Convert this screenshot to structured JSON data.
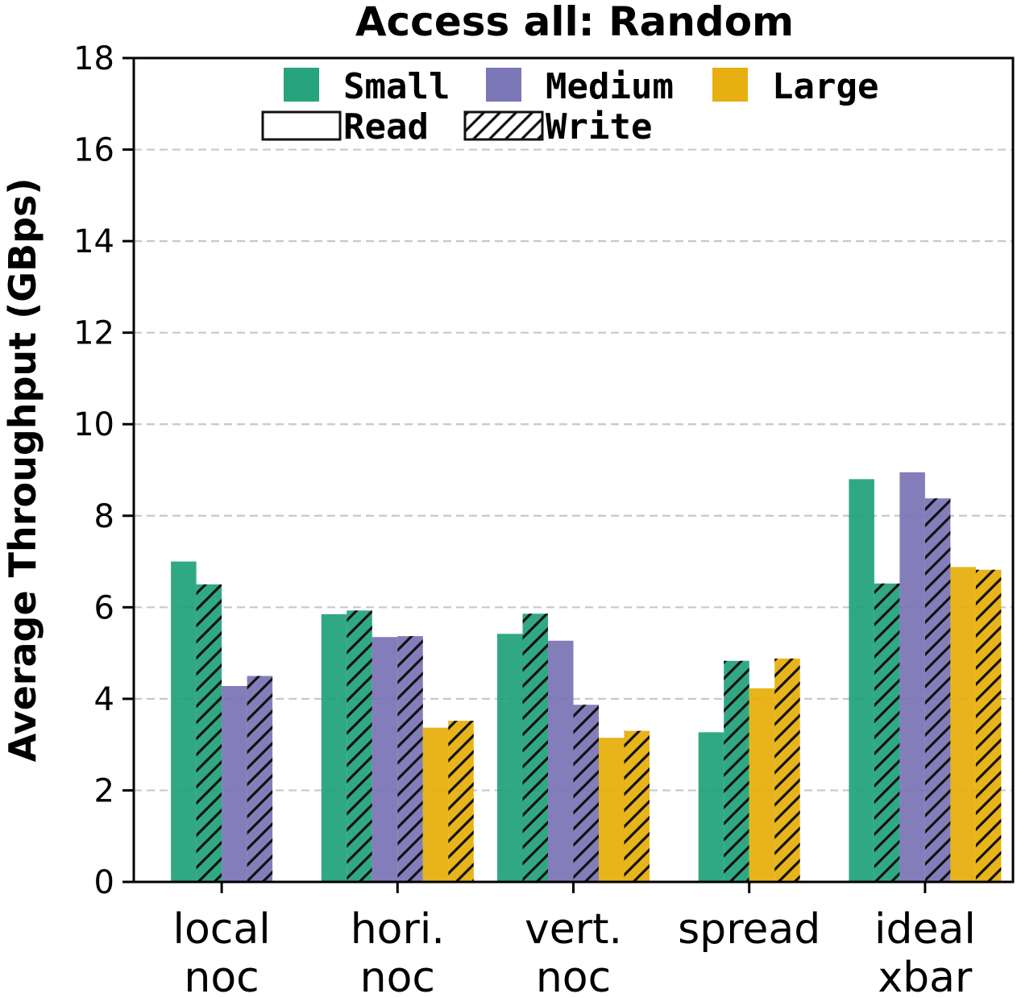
{
  "chart_data": {
    "type": "bar",
    "title": "Access all: Random",
    "ylabel": "Average Throughput (GBps)",
    "xlabel": "",
    "ylim": [
      0,
      18
    ],
    "yticks": [
      0,
      2,
      4,
      6,
      8,
      10,
      12,
      14,
      16,
      18
    ],
    "grid": "y-dashed",
    "legend_position": "top",
    "categories": [
      [
        "local",
        "noc"
      ],
      [
        "hori.",
        "noc"
      ],
      [
        "vert.",
        "noc"
      ],
      [
        "spread"
      ],
      [
        "ideal",
        "xbar"
      ]
    ],
    "size_legend": [
      {
        "name": "Small",
        "color": "#1b9e77"
      },
      {
        "name": "Medium",
        "color": "#7570b3"
      },
      {
        "name": "Large",
        "color": "#e6ab02"
      }
    ],
    "pattern_legend": [
      {
        "name": "Read",
        "pattern": "solid"
      },
      {
        "name": "Write",
        "pattern": "hatch"
      }
    ],
    "series": [
      {
        "size": "Small",
        "op": "Read",
        "values": [
          7.0,
          5.85,
          5.42,
          3.27,
          8.8
        ]
      },
      {
        "size": "Small",
        "op": "Write",
        "values": [
          6.5,
          5.93,
          5.86,
          4.83,
          6.52
        ]
      },
      {
        "size": "Medium",
        "op": "Read",
        "values": [
          4.28,
          5.35,
          5.27,
          null,
          8.95
        ]
      },
      {
        "size": "Medium",
        "op": "Write",
        "values": [
          4.5,
          5.37,
          3.87,
          null,
          8.38
        ]
      },
      {
        "size": "Large",
        "op": "Read",
        "values": [
          null,
          3.37,
          3.15,
          4.23,
          6.88
        ]
      },
      {
        "size": "Large",
        "op": "Write",
        "values": [
          null,
          3.52,
          3.3,
          4.88,
          6.82
        ]
      }
    ]
  }
}
